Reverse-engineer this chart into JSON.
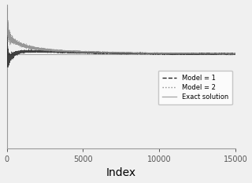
{
  "title": "",
  "xlabel": "Index",
  "ylabel": "",
  "xlim": [
    0,
    15000
  ],
  "ylim_min": -0.6,
  "ylim_max": 0.7,
  "exact_value": 0.25,
  "n_points": 15000,
  "legend_labels": [
    "Model = 1",
    "Model = 2",
    "Exact solution"
  ],
  "color_model1": "#222222",
  "color_model2": "#888888",
  "color_exact": "#aaaaaa",
  "bg_color": "#f0f0f0",
  "xlabel_fontsize": 10,
  "tick_fontsize": 7,
  "legend_fontsize": 6
}
